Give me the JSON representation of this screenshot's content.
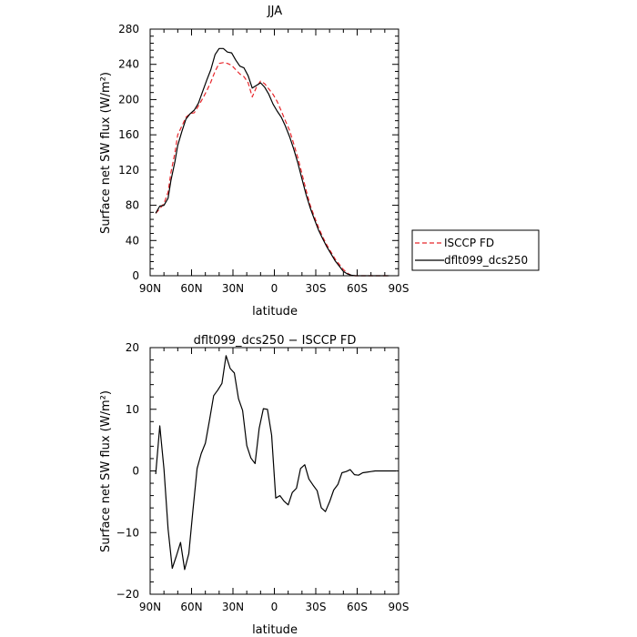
{
  "chart_data": [
    {
      "type": "line",
      "title": "JJA",
      "xlabel": "latitude",
      "ylabel": "Surface net SW flux (W/m²)",
      "xlim": [
        90,
        -90
      ],
      "ylim": [
        0,
        280
      ],
      "x_ticks": [
        90,
        60,
        30,
        0,
        -30,
        -60,
        -90
      ],
      "x_tick_labels": [
        "90N",
        "60N",
        "30N",
        "0",
        "30S",
        "60S",
        "90S"
      ],
      "y_ticks": [
        0,
        40,
        80,
        120,
        160,
        200,
        240,
        280
      ],
      "y_tick_labels": [
        "0",
        "40",
        "80",
        "120",
        "160",
        "200",
        "240",
        "280"
      ],
      "legend_position": "right",
      "series": [
        {
          "name": "ISCCP FD",
          "color": "#e8262b",
          "style": "dashed",
          "x": [
            86,
            83,
            80,
            77,
            75,
            72,
            70,
            67,
            64,
            61,
            58,
            55,
            52,
            49,
            46,
            43,
            40,
            37,
            34,
            31,
            28,
            25,
            22,
            19,
            16,
            13,
            10,
            7,
            4,
            1,
            -2,
            -5,
            -8,
            -11,
            -14,
            -17,
            -20,
            -23,
            -26,
            -29,
            -32,
            -35,
            -38,
            -41,
            -44,
            -47,
            -50,
            -53,
            -56,
            -59,
            -62,
            -65,
            -68,
            -71,
            -74,
            -77,
            -80,
            -83
          ],
          "y": [
            71,
            76,
            82,
            95,
            117,
            140,
            160,
            170,
            180,
            184,
            185,
            193,
            201,
            210,
            220,
            232,
            241,
            242,
            241,
            239,
            234,
            229,
            226,
            219,
            203,
            214,
            221,
            218,
            212,
            206,
            198,
            187,
            176,
            165,
            150,
            134,
            116,
            97,
            80,
            67,
            55,
            44,
            35,
            27,
            19,
            13,
            7,
            3,
            0,
            0,
            0,
            0,
            0,
            0,
            0,
            0,
            0,
            0
          ]
        },
        {
          "name": "dflt099_dcs250",
          "color": "#000000",
          "style": "solid",
          "x": [
            86,
            83,
            80,
            77,
            75,
            72,
            70,
            67,
            64,
            61,
            58,
            55,
            52,
            49,
            46,
            43,
            40,
            37,
            34,
            31,
            28,
            25,
            22,
            19,
            16,
            13,
            10,
            7,
            4,
            1,
            -2,
            -5,
            -8,
            -11,
            -14,
            -17,
            -20,
            -23,
            -26,
            -29,
            -32,
            -35,
            -38,
            -41,
            -44,
            -47,
            -50,
            -53,
            -56,
            -59,
            -62,
            -65,
            -68,
            -71,
            -74,
            -77,
            -80,
            -83
          ],
          "y": [
            71,
            79,
            80,
            88,
            108,
            130,
            148,
            164,
            178,
            184,
            188,
            196,
            209,
            222,
            234,
            251,
            258,
            258,
            254,
            253,
            245,
            238,
            236,
            227,
            213,
            216,
            219,
            214,
            206,
            195,
            187,
            180,
            170,
            158,
            144,
            128,
            110,
            92,
            77,
            64,
            52,
            42,
            33,
            25,
            17,
            11,
            5,
            2,
            0.5,
            0,
            0,
            0,
            0,
            0,
            0,
            0,
            0,
            0
          ]
        }
      ]
    },
    {
      "type": "line",
      "title": "dflt099_dcs250 − ISCCP FD",
      "xlabel": "latitude",
      "ylabel": "Surface net SW flux (W/m²)",
      "xlim": [
        90,
        -90
      ],
      "ylim": [
        -20,
        20
      ],
      "x_ticks": [
        90,
        60,
        30,
        0,
        -30,
        -60,
        -90
      ],
      "x_tick_labels": [
        "90N",
        "60N",
        "30N",
        "0",
        "30S",
        "60S",
        "90S"
      ],
      "y_ticks": [
        -20,
        -10,
        0,
        10,
        20
      ],
      "y_tick_labels": [
        "−20",
        "−10",
        "0",
        "10",
        "20"
      ],
      "series": [
        {
          "color": "#000000",
          "style": "solid",
          "x": [
            86,
            83,
            80,
            77,
            74,
            71,
            68,
            65,
            62,
            59,
            56,
            53,
            50,
            47,
            44,
            41,
            38,
            35,
            32,
            29,
            26,
            23,
            20,
            17,
            14,
            11,
            8,
            5,
            2,
            -1,
            -4,
            -7,
            -10,
            -13,
            -16,
            -19,
            -22,
            -25,
            -28,
            -31,
            -34,
            -37,
            -40,
            -43,
            -46,
            -49,
            -52,
            -55,
            -58,
            -61,
            -64,
            -67,
            -70,
            -73,
            -76,
            -79,
            -82,
            -85,
            -88
          ],
          "y": [
            -0.5,
            7.3,
            0.3,
            -9.4,
            -15.8,
            -13.8,
            -11.6,
            -16.0,
            -13.4,
            -6.4,
            0.4,
            2.8,
            4.5,
            8.2,
            12.2,
            13.1,
            14.2,
            18.7,
            16.6,
            15.9,
            11.7,
            9.8,
            4.1,
            2.1,
            1.2,
            6.9,
            10.1,
            10.0,
            5.8,
            -4.4,
            -4.0,
            -4.9,
            -5.5,
            -3.5,
            -2.8,
            0.4,
            1.0,
            -1.3,
            -2.3,
            -3.2,
            -6.0,
            -6.6,
            -5.0,
            -3.1,
            -2.2,
            -0.3,
            -0.1,
            0.2,
            -0.6,
            -0.7,
            -0.3,
            -0.2,
            -0.1,
            0.0,
            0.0,
            0.0,
            0.0,
            0.0,
            0.0
          ]
        }
      ]
    }
  ]
}
